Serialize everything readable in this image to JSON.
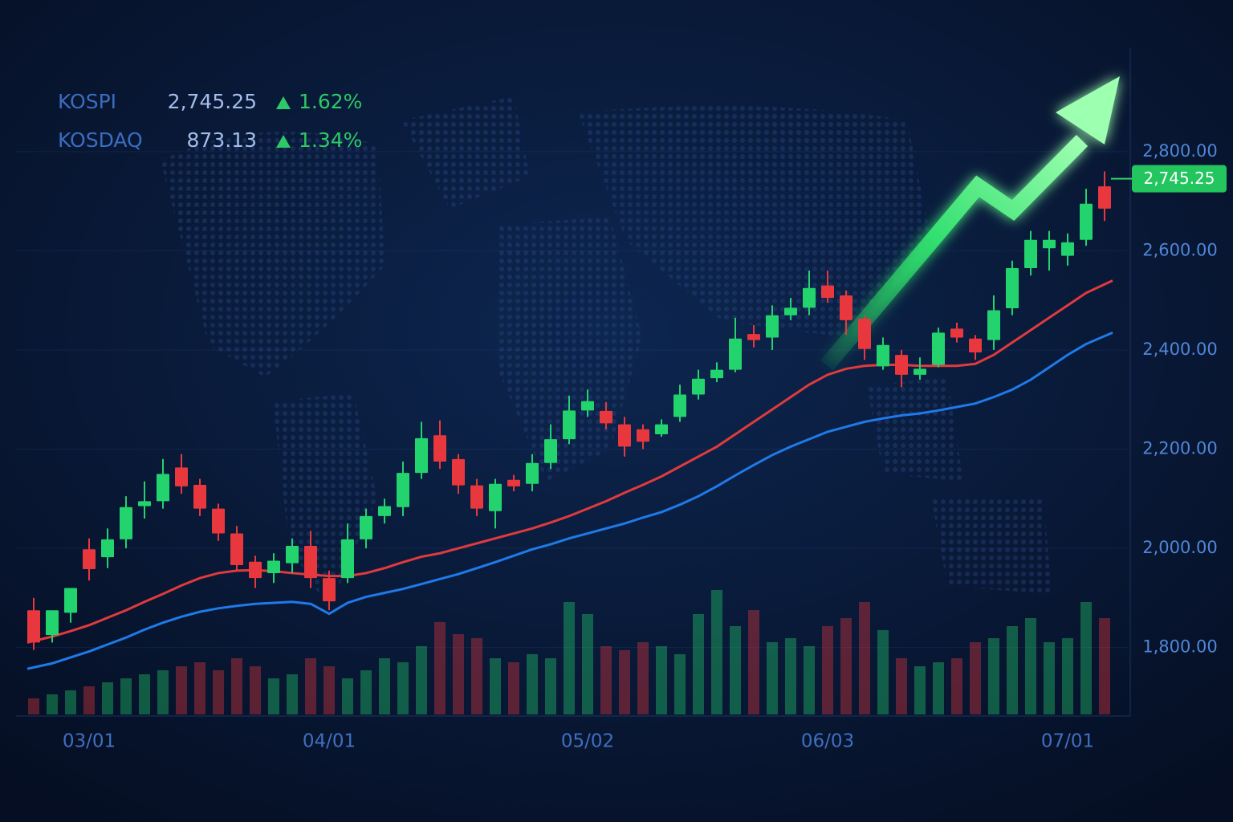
{
  "chart_data": {
    "type": "candlestick",
    "indices": [
      {
        "name": "KOSPI",
        "value": "2,745.25",
        "change": "1.62%"
      },
      {
        "name": "KOSDAQ",
        "value": "873.13",
        "change": "1.34%"
      }
    ],
    "categories": [
      null,
      null,
      null,
      "03/01",
      null,
      null,
      null,
      null,
      null,
      null,
      null,
      null,
      null,
      null,
      null,
      null,
      "04/01",
      null,
      null,
      null,
      null,
      null,
      null,
      null,
      null,
      null,
      null,
      null,
      null,
      null,
      "05/02",
      null,
      null,
      null,
      null,
      null,
      null,
      null,
      null,
      null,
      null,
      null,
      null,
      "06/03",
      null,
      null,
      null,
      null,
      null,
      null,
      null,
      null,
      null,
      null,
      null,
      null,
      "07/01",
      null,
      null
    ],
    "open": [
      1875,
      1825,
      1870,
      1998,
      1982,
      2018,
      2085,
      2095,
      2163,
      2128,
      2080,
      2030,
      1973,
      1950,
      1970,
      2005,
      1940,
      1940,
      2018,
      2065,
      2083,
      2152,
      2228,
      2180,
      2127,
      2075,
      2138,
      2130,
      2172,
      2220,
      2278,
      2277,
      2250,
      2240,
      2230,
      2265,
      2310,
      2343,
      2360,
      2432,
      2425,
      2470,
      2485,
      2530,
      2510,
      2463,
      2367,
      2390,
      2350,
      2370,
      2443,
      2423,
      2420,
      2484,
      2565,
      2605,
      2590,
      2622,
      2730
    ],
    "high": [
      1900,
      1870,
      1920,
      2020,
      2040,
      2105,
      2135,
      2180,
      2190,
      2140,
      2090,
      2045,
      1985,
      1990,
      2020,
      2035,
      1955,
      2050,
      2080,
      2100,
      2175,
      2255,
      2258,
      2190,
      2140,
      2140,
      2148,
      2190,
      2250,
      2308,
      2320,
      2295,
      2265,
      2250,
      2260,
      2330,
      2360,
      2375,
      2465,
      2450,
      2490,
      2505,
      2560,
      2560,
      2520,
      2470,
      2425,
      2400,
      2385,
      2445,
      2455,
      2430,
      2510,
      2580,
      2640,
      2640,
      2635,
      2725,
      2760
    ],
    "low": [
      1795,
      1810,
      1850,
      1935,
      1960,
      2000,
      2060,
      2080,
      2110,
      2065,
      2015,
      1955,
      1920,
      1930,
      1950,
      1920,
      1875,
      1930,
      2000,
      2050,
      2065,
      2140,
      2160,
      2110,
      2065,
      2040,
      2115,
      2115,
      2160,
      2210,
      2265,
      2240,
      2185,
      2200,
      2225,
      2255,
      2300,
      2335,
      2355,
      2405,
      2400,
      2460,
      2470,
      2495,
      2430,
      2380,
      2360,
      2325,
      2340,
      2365,
      2415,
      2380,
      2400,
      2470,
      2550,
      2560,
      2570,
      2610,
      2660
    ],
    "close": [
      1810,
      1875,
      1920,
      1958,
      2018,
      2083,
      2095,
      2150,
      2125,
      2080,
      2030,
      1966,
      1940,
      1975,
      2005,
      1940,
      1893,
      2018,
      2065,
      2085,
      2152,
      2222,
      2175,
      2127,
      2080,
      2130,
      2125,
      2172,
      2220,
      2278,
      2297,
      2252,
      2205,
      2215,
      2250,
      2310,
      2342,
      2360,
      2423,
      2420,
      2470,
      2485,
      2525,
      2505,
      2460,
      2402,
      2410,
      2350,
      2362,
      2435,
      2425,
      2395,
      2480,
      2565,
      2622,
      2622,
      2617,
      2695,
      2685
    ],
    "volume": [
      20,
      25,
      30,
      35,
      40,
      45,
      50,
      55,
      60,
      65,
      55,
      70,
      60,
      45,
      50,
      70,
      60,
      45,
      55,
      70,
      65,
      85,
      115,
      100,
      95,
      70,
      65,
      75,
      70,
      140,
      125,
      85,
      80,
      90,
      85,
      75,
      125,
      155,
      110,
      130,
      90,
      95,
      85,
      110,
      120,
      140,
      105,
      70,
      60,
      65,
      70,
      90,
      95,
      110,
      120,
      90,
      95,
      140,
      120
    ],
    "lines": [
      {
        "color": "#e03a3e",
        "values": [
          1810,
          1822,
          1833,
          1845,
          1860,
          1875,
          1892,
          1908,
          1925,
          1940,
          1950,
          1955,
          1956,
          1954,
          1950,
          1947,
          1944,
          1944,
          1950,
          1960,
          1972,
          1983,
          1990,
          2000,
          2010,
          2020,
          2030,
          2040,
          2052,
          2065,
          2080,
          2095,
          2112,
          2128,
          2145,
          2165,
          2185,
          2205,
          2230,
          2255,
          2280,
          2305,
          2330,
          2350,
          2362,
          2368,
          2370,
          2370,
          2368,
          2368,
          2368,
          2372,
          2390,
          2415,
          2440,
          2465,
          2490,
          2515,
          2540
        ]
      },
      {
        "color": "#1f7ae8",
        "values": [
          1757,
          1768,
          1780,
          1792,
          1806,
          1820,
          1836,
          1850,
          1862,
          1872,
          1879,
          1884,
          1888,
          1890,
          1892,
          1888,
          1868,
          1890,
          1902,
          1910,
          1918,
          1928,
          1938,
          1948,
          1960,
          1972,
          1985,
          1998,
          2008,
          2020,
          2030,
          2040,
          2050,
          2062,
          2073,
          2088,
          2105,
          2125,
          2147,
          2168,
          2188,
          2205,
          2220,
          2235,
          2245,
          2255,
          2262,
          2268,
          2272,
          2278,
          2285,
          2292,
          2305,
          2320,
          2340,
          2365,
          2390,
          2412,
          2435
        ]
      }
    ],
    "up_color": "#22d36e",
    "down_color": "#e8383d",
    "price_marker": {
      "value": 2745.25,
      "label": "2,745.25"
    },
    "ylim": [
      1665,
      2960
    ],
    "yticks": [
      {
        "value": 1800,
        "label": "1,800.00"
      },
      {
        "value": 2000,
        "label": "2,000.00"
      },
      {
        "value": 2200,
        "label": "2,200.00"
      },
      {
        "value": 2400,
        "label": "2,400.00"
      },
      {
        "value": 2600,
        "label": "2,600.00"
      },
      {
        "value": 2800,
        "label": "2,800.00"
      }
    ],
    "grid": true
  }
}
